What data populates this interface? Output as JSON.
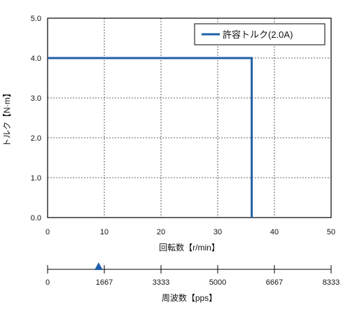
{
  "chart_data": {
    "type": "line",
    "xlabel": "回転数【r/min】",
    "ylabel": "トルク【N·m】",
    "xlim": [
      0,
      50
    ],
    "ylim": [
      0,
      5
    ],
    "xticks": [
      "0",
      "10",
      "20",
      "30",
      "40",
      "50"
    ],
    "yticks": [
      "0.0",
      "1.0",
      "2.0",
      "3.0",
      "4.0",
      "5.0"
    ],
    "grid": true,
    "legend_position": "top-right",
    "series": [
      {
        "name": "許容トルク(2.0A)",
        "color": "#1f5fa8",
        "x": [
          0,
          36,
          36
        ],
        "y": [
          4.0,
          4.0,
          0.0
        ]
      }
    ],
    "secondary_axis": {
      "label": "周波数【pps】",
      "xlim": [
        0,
        8333
      ],
      "ticks": [
        "0",
        "1667",
        "3333",
        "5000",
        "6667",
        "8333"
      ],
      "marker": {
        "value": 1500,
        "color": "#1f5fa8",
        "shape": "triangle-up"
      }
    }
  }
}
